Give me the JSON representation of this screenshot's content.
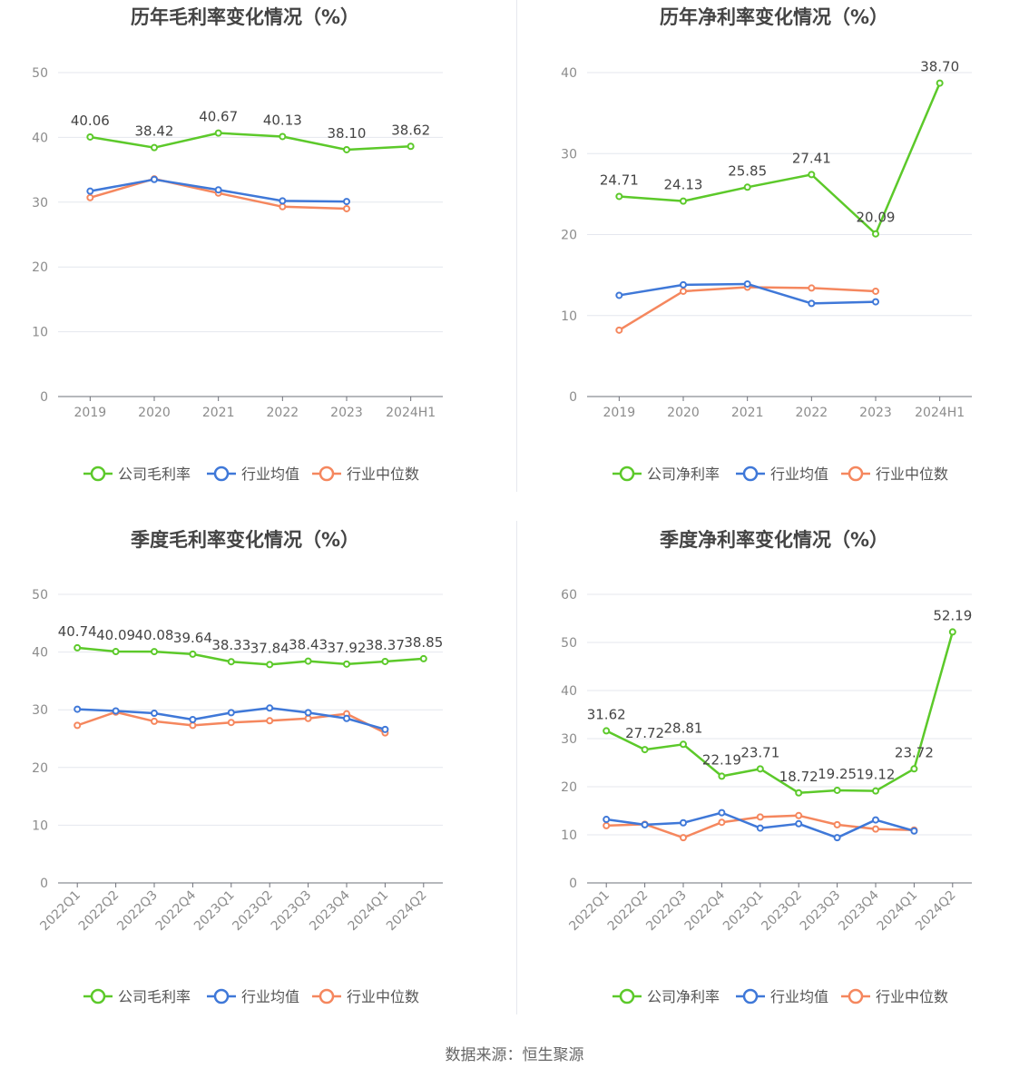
{
  "source_label": "数据来源：恒生聚源",
  "colors": {
    "company": "#5cc92a",
    "avg": "#3f78d8",
    "median": "#f5875e",
    "grid": "#e4e7ee",
    "axis": "#6e7079",
    "tick": "#8c8c8c",
    "label": "#444444",
    "title": "#444444"
  },
  "legend_labels": {
    "company_gross": "公司毛利率",
    "company_net": "公司净利率",
    "industry_avg": "行业均值",
    "industry_median": "行业中位数"
  },
  "chart_data": [
    {
      "type": "line",
      "title": "历年毛利率变化情况（%）",
      "categories": [
        "2019",
        "2020",
        "2021",
        "2022",
        "2023",
        "2024H1"
      ],
      "ylim": [
        0,
        50
      ],
      "yticks": [
        0,
        10,
        20,
        30,
        40,
        50
      ],
      "rotate_xlabels": false,
      "grid": true,
      "legend": "bottom",
      "series": [
        {
          "name": "公司毛利率",
          "key": "company",
          "values": [
            40.06,
            38.42,
            40.67,
            40.13,
            38.1,
            38.62
          ],
          "labels": [
            "40.06",
            "38.42",
            "40.67",
            "40.13",
            "38.10",
            "38.62"
          ]
        },
        {
          "name": "行业均值",
          "key": "avg",
          "values": [
            31.7,
            33.5,
            31.9,
            30.2,
            30.1,
            null
          ]
        },
        {
          "name": "行业中位数",
          "key": "median",
          "values": [
            30.7,
            33.6,
            31.4,
            29.3,
            29.0,
            null
          ]
        }
      ]
    },
    {
      "type": "line",
      "title": "历年净利率变化情况（%）",
      "categories": [
        "2019",
        "2020",
        "2021",
        "2022",
        "2023",
        "2024H1"
      ],
      "ylim": [
        0,
        40
      ],
      "yticks": [
        0,
        10,
        20,
        30,
        40
      ],
      "rotate_xlabels": false,
      "grid": true,
      "legend": "bottom",
      "series": [
        {
          "name": "公司净利率",
          "key": "company",
          "values": [
            24.71,
            24.13,
            25.85,
            27.41,
            20.09,
            38.7
          ],
          "labels": [
            "24.71",
            "24.13",
            "25.85",
            "27.41",
            "20.09",
            "38.70"
          ]
        },
        {
          "name": "行业均值",
          "key": "avg",
          "values": [
            12.5,
            13.8,
            13.9,
            11.5,
            11.7,
            null
          ]
        },
        {
          "name": "行业中位数",
          "key": "median",
          "values": [
            8.2,
            13.0,
            13.5,
            13.4,
            13.0,
            null
          ]
        }
      ]
    },
    {
      "type": "line",
      "title": "季度毛利率变化情况（%）",
      "categories": [
        "2022Q1",
        "2022Q2",
        "2022Q3",
        "2022Q4",
        "2023Q1",
        "2023Q2",
        "2023Q3",
        "2023Q4",
        "2024Q1",
        "2024Q2"
      ],
      "ylim": [
        0,
        50
      ],
      "yticks": [
        0,
        10,
        20,
        30,
        40,
        50
      ],
      "rotate_xlabels": true,
      "grid": true,
      "legend": "bottom",
      "series": [
        {
          "name": "公司毛利率",
          "key": "company",
          "values": [
            40.74,
            40.09,
            40.08,
            39.64,
            38.33,
            37.84,
            38.43,
            37.92,
            38.37,
            38.85
          ],
          "labels": [
            "40.74",
            "40.09",
            "40.08",
            "39.64",
            "38.33",
            "37.84",
            "38.43",
            "37.92",
            "38.37",
            "38.85"
          ]
        },
        {
          "name": "行业均值",
          "key": "avg",
          "values": [
            30.1,
            29.8,
            29.4,
            28.3,
            29.5,
            30.3,
            29.5,
            28.5,
            26.6,
            null
          ]
        },
        {
          "name": "行业中位数",
          "key": "median",
          "values": [
            27.3,
            29.6,
            28.0,
            27.3,
            27.8,
            28.1,
            28.5,
            29.3,
            26.0,
            null
          ]
        }
      ]
    },
    {
      "type": "line",
      "title": "季度净利率变化情况（%）",
      "categories": [
        "2022Q1",
        "2022Q2",
        "2022Q3",
        "2022Q4",
        "2023Q1",
        "2023Q2",
        "2023Q3",
        "2023Q4",
        "2024Q1",
        "2024Q2"
      ],
      "ylim": [
        0,
        60
      ],
      "yticks": [
        0,
        10,
        20,
        30,
        40,
        50,
        60
      ],
      "rotate_xlabels": true,
      "grid": true,
      "legend": "bottom",
      "series": [
        {
          "name": "公司净利率",
          "key": "company",
          "values": [
            31.62,
            27.72,
            28.81,
            22.19,
            23.71,
            18.72,
            19.25,
            19.12,
            23.72,
            52.19
          ],
          "labels": [
            "31.62",
            "27.72",
            "28.81",
            "22.19",
            "23.71",
            "18.72",
            "19.25",
            "19.12",
            "23.72",
            "52.19"
          ]
        },
        {
          "name": "行业均值",
          "key": "avg",
          "values": [
            13.2,
            12.1,
            12.5,
            14.6,
            11.4,
            12.3,
            9.4,
            13.1,
            10.8,
            null
          ]
        },
        {
          "name": "行业中位数",
          "key": "median",
          "values": [
            11.9,
            12.2,
            9.4,
            12.6,
            13.7,
            14.0,
            12.1,
            11.2,
            11.0,
            null
          ]
        }
      ]
    }
  ]
}
